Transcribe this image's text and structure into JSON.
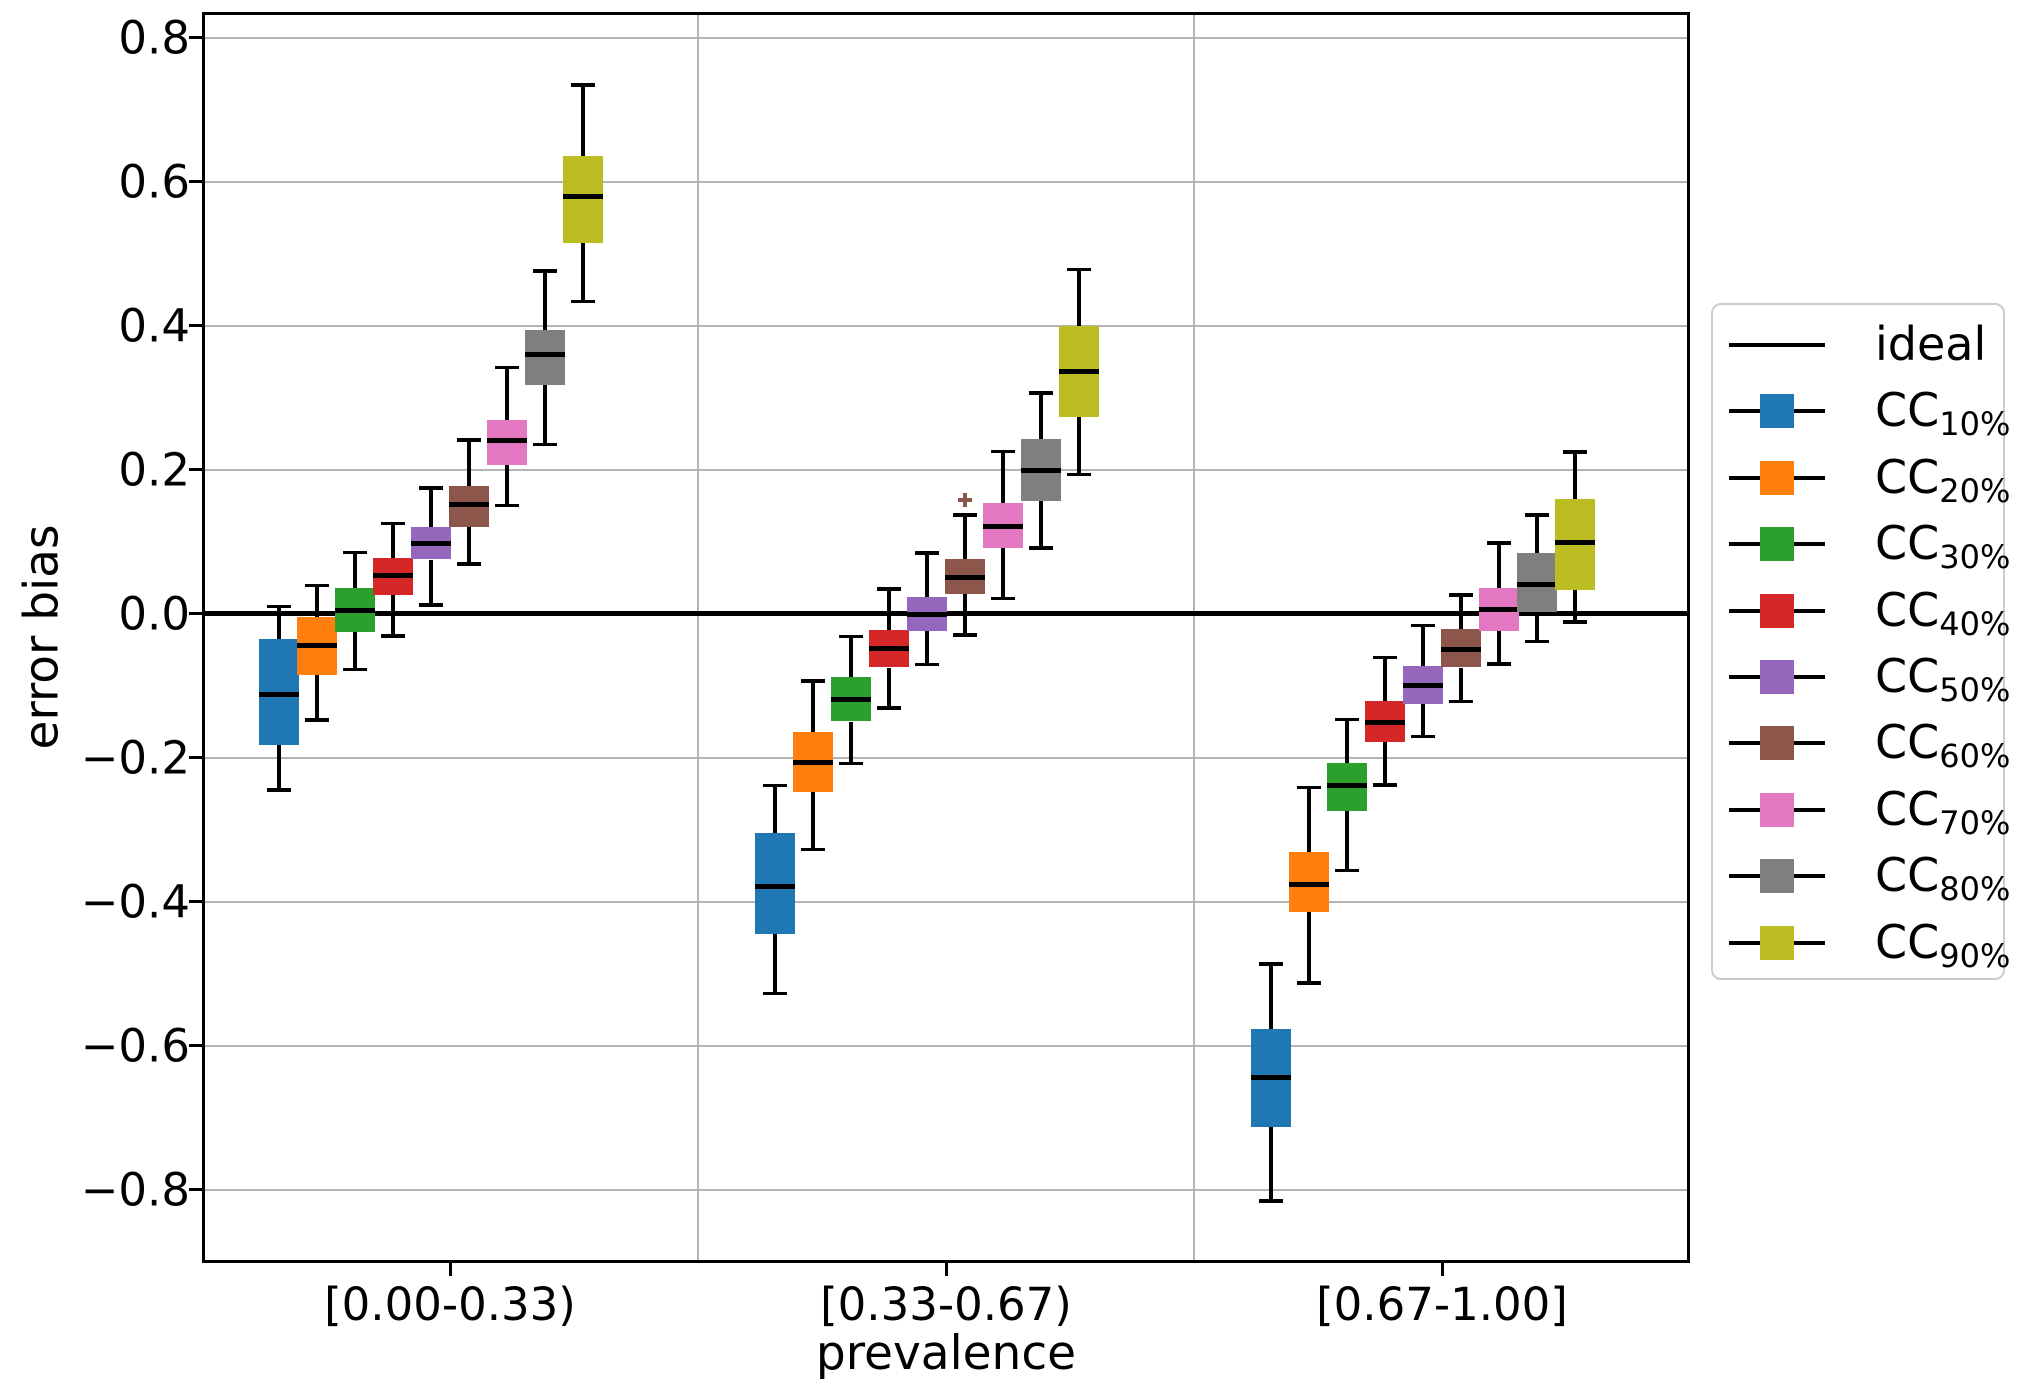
{
  "figure": {
    "background": "#ffffff",
    "grid_color": "#b4b4b4",
    "axis_color": "#000000"
  },
  "chart_data": {
    "type": "boxplot",
    "title": "",
    "xlabel": "prevalence",
    "ylabel": "error bias",
    "grid": true,
    "legend_position": "right",
    "categories": [
      "[0.00-0.33)",
      "[0.33-0.67)",
      "[0.67-1.00]"
    ],
    "ytick_labels": [
      "0.8",
      "0.6",
      "0.4",
      "0.2",
      "0.0",
      "−0.2",
      "−0.4",
      "−0.6",
      "−0.8"
    ],
    "ytick_values": [
      0.8,
      0.6,
      0.4,
      0.2,
      0.0,
      -0.2,
      -0.4,
      -0.6,
      -0.8
    ],
    "ylim": [
      -0.902,
      0.835
    ],
    "ideal_line": {
      "label": "ideal",
      "value": 0.0,
      "color": "#000000"
    },
    "series": [
      {
        "name": "CC",
        "sub": "10%",
        "color": "#1f77b4",
        "groups": [
          {
            "whislo": -0.245,
            "q1": -0.182,
            "med": -0.113,
            "q3": -0.036,
            "whishi": 0.01,
            "fliers": []
          },
          {
            "whislo": -0.528,
            "q1": -0.445,
            "med": -0.379,
            "q3": -0.305,
            "whishi": -0.239,
            "fliers": []
          },
          {
            "whislo": -0.816,
            "q1": -0.713,
            "med": -0.644,
            "q3": -0.577,
            "whishi": -0.487,
            "fliers": []
          }
        ]
      },
      {
        "name": "CC",
        "sub": "20%",
        "color": "#ff7f0e",
        "groups": [
          {
            "whislo": -0.148,
            "q1": -0.086,
            "med": -0.044,
            "q3": -0.005,
            "whishi": 0.039,
            "fliers": []
          },
          {
            "whislo": -0.328,
            "q1": -0.248,
            "med": -0.207,
            "q3": -0.165,
            "whishi": -0.094,
            "fliers": []
          },
          {
            "whislo": -0.513,
            "q1": -0.415,
            "med": -0.377,
            "q3": -0.331,
            "whishi": -0.242,
            "fliers": []
          }
        ]
      },
      {
        "name": "CC",
        "sub": "30%",
        "color": "#2ca02c",
        "groups": [
          {
            "whislo": -0.078,
            "q1": -0.026,
            "med": 0.004,
            "q3": 0.036,
            "whishi": 0.085,
            "fliers": []
          },
          {
            "whislo": -0.208,
            "q1": -0.15,
            "med": -0.119,
            "q3": -0.088,
            "whishi": -0.032,
            "fliers": []
          },
          {
            "whislo": -0.357,
            "q1": -0.274,
            "med": -0.239,
            "q3": -0.207,
            "whishi": -0.147,
            "fliers": []
          }
        ]
      },
      {
        "name": "CC",
        "sub": "40%",
        "color": "#d62728",
        "groups": [
          {
            "whislo": -0.031,
            "q1": 0.026,
            "med": 0.053,
            "q3": 0.077,
            "whishi": 0.125,
            "fliers": []
          },
          {
            "whislo": -0.131,
            "q1": -0.075,
            "med": -0.049,
            "q3": -0.023,
            "whishi": 0.034,
            "fliers": []
          },
          {
            "whislo": -0.238,
            "q1": -0.179,
            "med": -0.151,
            "q3": -0.122,
            "whishi": -0.061,
            "fliers": []
          }
        ]
      },
      {
        "name": "CC",
        "sub": "50%",
        "color": "#9467bd",
        "groups": [
          {
            "whislo": 0.012,
            "q1": 0.075,
            "med": 0.097,
            "q3": 0.12,
            "whishi": 0.174,
            "fliers": []
          },
          {
            "whislo": -0.071,
            "q1": -0.024,
            "med": -0.001,
            "q3": 0.023,
            "whishi": 0.084,
            "fliers": []
          },
          {
            "whislo": -0.171,
            "q1": -0.126,
            "med": -0.1,
            "q3": -0.073,
            "whishi": -0.017,
            "fliers": []
          }
        ]
      },
      {
        "name": "CC",
        "sub": "60%",
        "color": "#8c564b",
        "groups": [
          {
            "whislo": 0.069,
            "q1": 0.12,
            "med": 0.152,
            "q3": 0.177,
            "whishi": 0.241,
            "fliers": []
          },
          {
            "whislo": -0.03,
            "q1": 0.027,
            "med": 0.05,
            "q3": 0.076,
            "whishi": 0.137,
            "fliers": [
              0.157
            ]
          },
          {
            "whislo": -0.122,
            "q1": -0.075,
            "med": -0.05,
            "q3": -0.022,
            "whishi": 0.026,
            "fliers": []
          }
        ]
      },
      {
        "name": "CC",
        "sub": "70%",
        "color": "#e377c2",
        "groups": [
          {
            "whislo": 0.15,
            "q1": 0.206,
            "med": 0.24,
            "q3": 0.269,
            "whishi": 0.342,
            "fliers": []
          },
          {
            "whislo": 0.021,
            "q1": 0.091,
            "med": 0.121,
            "q3": 0.153,
            "whishi": 0.225,
            "fliers": []
          },
          {
            "whislo": -0.07,
            "q1": -0.024,
            "med": 0.005,
            "q3": 0.035,
            "whishi": 0.098,
            "fliers": []
          }
        ]
      },
      {
        "name": "CC",
        "sub": "80%",
        "color": "#7f7f7f",
        "groups": [
          {
            "whislo": 0.235,
            "q1": 0.317,
            "med": 0.36,
            "q3": 0.394,
            "whishi": 0.476,
            "fliers": []
          },
          {
            "whislo": 0.091,
            "q1": 0.156,
            "med": 0.198,
            "q3": 0.242,
            "whishi": 0.306,
            "fliers": []
          },
          {
            "whislo": -0.039,
            "q1": 0.002,
            "med": 0.04,
            "q3": 0.084,
            "whishi": 0.137,
            "fliers": []
          }
        ]
      },
      {
        "name": "CC",
        "sub": "90%",
        "color": "#bcbd22",
        "groups": [
          {
            "whislo": 0.433,
            "q1": 0.514,
            "med": 0.579,
            "q3": 0.635,
            "whishi": 0.734,
            "fliers": []
          },
          {
            "whislo": 0.193,
            "q1": 0.273,
            "med": 0.336,
            "q3": 0.399,
            "whishi": 0.478,
            "fliers": []
          },
          {
            "whislo": -0.012,
            "q1": 0.033,
            "med": 0.098,
            "q3": 0.159,
            "whishi": 0.224,
            "fliers": []
          }
        ]
      }
    ]
  },
  "legend": {
    "entries": [
      {
        "label": "ideal",
        "sub": "",
        "marker": "line",
        "color": "#000000"
      },
      {
        "label": "CC",
        "sub": "10%",
        "marker": "box",
        "color": "#1f77b4"
      },
      {
        "label": "CC",
        "sub": "20%",
        "marker": "box",
        "color": "#ff7f0e"
      },
      {
        "label": "CC",
        "sub": "30%",
        "marker": "box",
        "color": "#2ca02c"
      },
      {
        "label": "CC",
        "sub": "40%",
        "marker": "box",
        "color": "#d62728"
      },
      {
        "label": "CC",
        "sub": "50%",
        "marker": "box",
        "color": "#9467bd"
      },
      {
        "label": "CC",
        "sub": "60%",
        "marker": "box",
        "color": "#8c564b"
      },
      {
        "label": "CC",
        "sub": "70%",
        "marker": "box",
        "color": "#e377c2"
      },
      {
        "label": "CC",
        "sub": "80%",
        "marker": "box",
        "color": "#7f7f7f"
      },
      {
        "label": "CC",
        "sub": "90%",
        "marker": "box",
        "color": "#bcbd22"
      }
    ]
  }
}
